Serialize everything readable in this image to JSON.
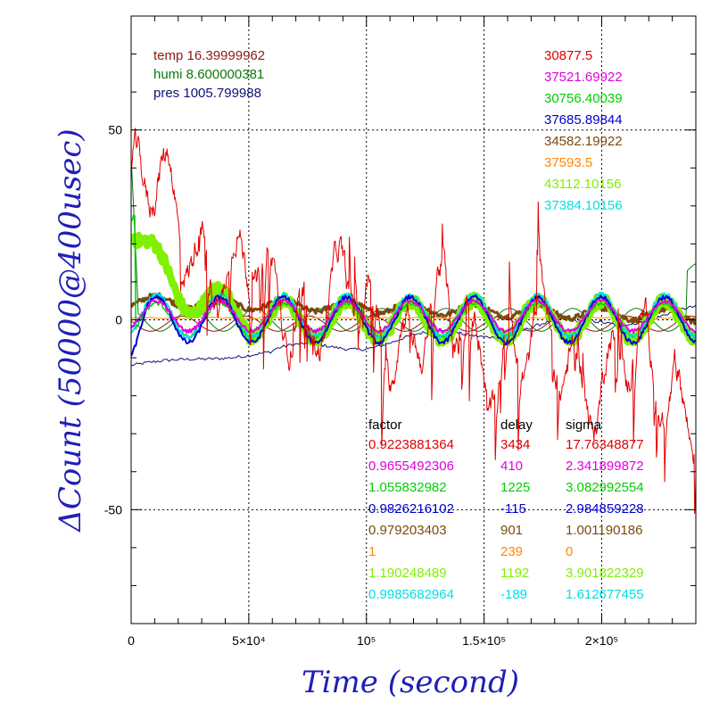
{
  "chart_data": {
    "type": "line",
    "xlabel": "Time (second)",
    "ylabel": "ΔCount (50000@400usec)",
    "xlim": [
      0,
      240000
    ],
    "ylim": [
      -80,
      80
    ],
    "grid": true,
    "x_ticks": [
      {
        "value": 0,
        "label": "0"
      },
      {
        "value": 50000,
        "label": "5×10⁴"
      },
      {
        "value": 100000,
        "label": "10⁵"
      },
      {
        "value": 150000,
        "label": "1.5×10⁵"
      },
      {
        "value": 200000,
        "label": "2×10⁵"
      }
    ],
    "y_ticks": [
      {
        "value": -50,
        "label": "-50"
      },
      {
        "value": 0,
        "label": "0"
      },
      {
        "value": 50,
        "label": "50"
      }
    ],
    "env": [
      {
        "text": "temp 16.39999962",
        "color": "#8b1a1a"
      },
      {
        "text": "humi 8.600000381",
        "color": "#0a7a0a"
      },
      {
        "text": "pres 1005.799988",
        "color": "#10107a"
      }
    ],
    "series_colors": [
      "#e00000",
      "#e000e0",
      "#00d000",
      "#0000d0",
      "#7a4a10",
      "#ff8800",
      "#80f000",
      "#00e0e0"
    ],
    "top_values": [
      "30877.5",
      "37521.69922",
      "30756.40039",
      "37685.89844",
      "34582.19922",
      "37593.5",
      "43112.10156",
      "37384.10156"
    ],
    "table_headers": [
      "factor",
      "delay",
      "sigma"
    ],
    "factor": [
      "0.9223881364",
      "0.9655492306",
      "1.055832982",
      "0.9826216102",
      "0.979203403",
      "1",
      "1.190248489",
      "0.9985682964"
    ],
    "delay": [
      "3434",
      "410",
      "1225",
      "-115",
      "901",
      "239",
      "1192",
      "-189"
    ],
    "sigma": [
      "17.76348877",
      "2.341899872",
      "3.082992554",
      "2.984859228",
      "1.001190186",
      "0",
      "3.901822329",
      "1.612677455"
    ]
  }
}
